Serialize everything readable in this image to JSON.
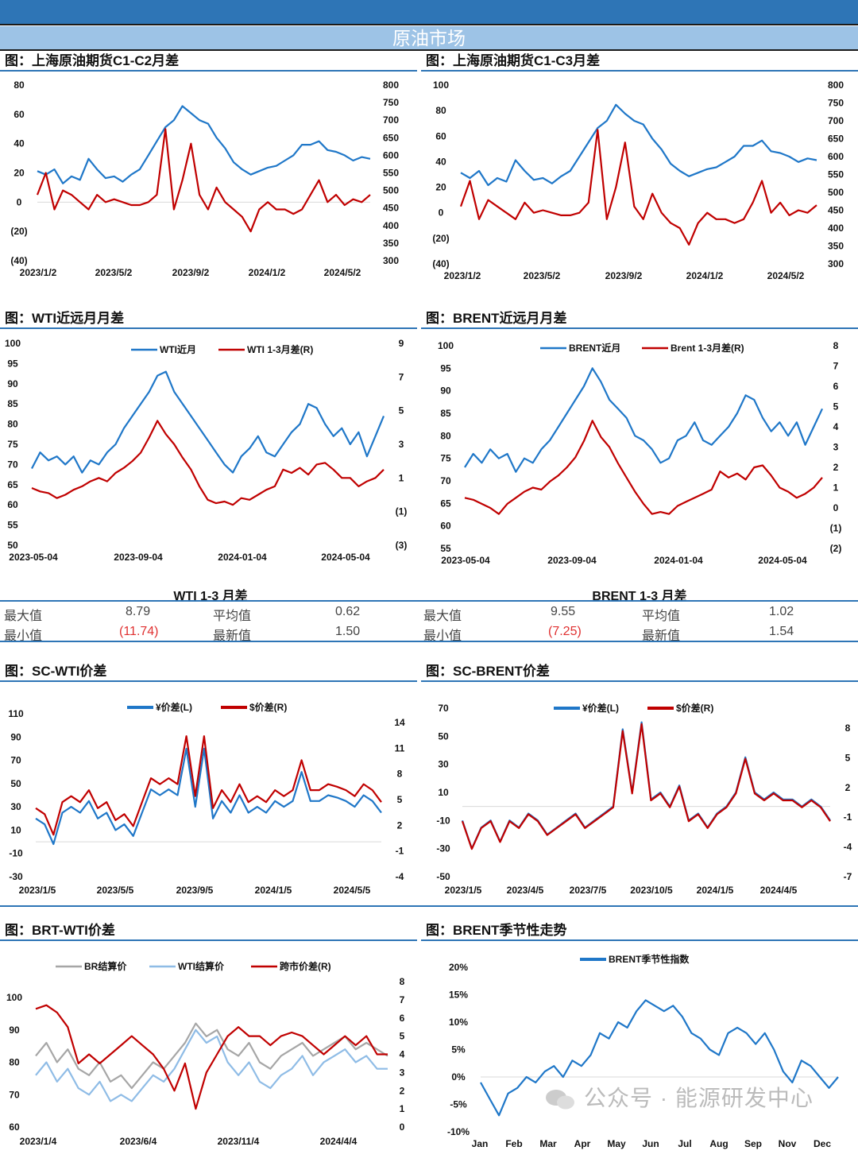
{
  "header": {
    "title": "原油市场"
  },
  "sections": {
    "c1": "图：上海原油期货C1-C2月差",
    "c2": "图：上海原油期货C1-C3月差",
    "c3": "图：WTI近远月月差",
    "c4": "图：BRENT近远月月差",
    "c5": "图：SC-WTI价差",
    "c6": "图：SC-BRENT价差",
    "c7": "图：BRT-WTI价差",
    "c8": "图：BRENT季节性走势"
  },
  "stats": {
    "wti": {
      "title": "WTI 1-3 月差",
      "max_label": "最大值",
      "max": "8.79",
      "avg_label": "平均值",
      "avg": "0.62",
      "min_label": "最小值",
      "min": "(11.74)",
      "latest_label": "最新值",
      "latest": "1.50"
    },
    "brent": {
      "title": "BRENT 1-3 月差",
      "max_label": "最大值",
      "max": "9.55",
      "avg_label": "平均值",
      "avg": "1.02",
      "min_label": "最小值",
      "min": "(7.25)",
      "latest_label": "最新值",
      "latest": "1.54"
    }
  },
  "watermark": "公众号 · 能源研发中心",
  "colors": {
    "header_dark": "#2e75b6",
    "header_light": "#9dc3e6",
    "blue": "#1f77c8",
    "red": "#c00000",
    "gray": "#a6a6a6",
    "light_blue": "#8fbce6",
    "negative_label": "#e03030"
  },
  "chart_data": [
    {
      "id": "c1",
      "type": "line",
      "x_ticks": [
        "2023/1/2",
        "2023/5/2",
        "2023/9/2",
        "2024/1/2",
        "2024/5/2"
      ],
      "left": {
        "min": -40,
        "max": 80,
        "ticks": [
          "80",
          "60",
          "40",
          "20",
          "0",
          "(20)",
          "(40)"
        ]
      },
      "right": {
        "min": 300,
        "max": 800,
        "ticks": [
          "800",
          "750",
          "700",
          "650",
          "600",
          "550",
          "500",
          "450",
          "400",
          "350",
          "300"
        ]
      },
      "zero_line": true,
      "series": [
        {
          "axis": "right",
          "color": "#1f77c8",
          "values": [
            555,
            545,
            560,
            520,
            540,
            530,
            590,
            560,
            535,
            540,
            525,
            545,
            560,
            600,
            640,
            680,
            700,
            740,
            720,
            700,
            690,
            650,
            620,
            580,
            560,
            545,
            555,
            565,
            570,
            585,
            600,
            630,
            630,
            640,
            615,
            610,
            600,
            585,
            595,
            590
          ]
        },
        {
          "axis": "left",
          "color": "#c00000",
          "values": [
            5,
            20,
            -5,
            8,
            5,
            0,
            -5,
            5,
            0,
            2,
            0,
            -2,
            -2,
            0,
            5,
            50,
            -5,
            15,
            40,
            5,
            -5,
            10,
            0,
            -5,
            -10,
            -20,
            -5,
            0,
            -5,
            -5,
            -8,
            -5,
            5,
            15,
            0,
            5,
            -2,
            2,
            0,
            5
          ]
        }
      ]
    },
    {
      "id": "c2",
      "type": "line",
      "x_ticks": [
        "2023/1/2",
        "2023/5/2",
        "2023/9/2",
        "2024/1/2",
        "2024/5/2"
      ],
      "left": {
        "min": -40,
        "max": 100,
        "ticks": [
          "100",
          "80",
          "60",
          "40",
          "20",
          "0",
          "(20)",
          "(40)"
        ]
      },
      "right": {
        "min": 300,
        "max": 800,
        "ticks": [
          "800",
          "750",
          "700",
          "650",
          "600",
          "550",
          "500",
          "450",
          "400",
          "350",
          "300"
        ]
      },
      "zero_line": false,
      "series": [
        {
          "axis": "right",
          "color": "#1f77c8",
          "values": [
            555,
            540,
            560,
            520,
            540,
            530,
            590,
            560,
            535,
            540,
            525,
            545,
            560,
            600,
            640,
            680,
            700,
            745,
            720,
            700,
            690,
            650,
            620,
            580,
            560,
            545,
            555,
            565,
            570,
            585,
            600,
            630,
            630,
            645,
            615,
            610,
            600,
            585,
            595,
            590
          ]
        },
        {
          "axis": "left",
          "color": "#c00000",
          "values": [
            5,
            25,
            -5,
            10,
            5,
            0,
            -5,
            8,
            0,
            2,
            0,
            -2,
            -2,
            0,
            8,
            65,
            -5,
            20,
            55,
            5,
            -5,
            15,
            0,
            -8,
            -12,
            -25,
            -8,
            0,
            -5,
            -5,
            -8,
            -5,
            8,
            25,
            0,
            8,
            -2,
            2,
            0,
            6
          ]
        }
      ]
    },
    {
      "id": "c3",
      "type": "line",
      "x_ticks": [
        "2023-05-04",
        "2023-09-04",
        "2024-01-04",
        "2024-05-04"
      ],
      "left": {
        "min": 50,
        "max": 100,
        "ticks": [
          "100",
          "95",
          "90",
          "85",
          "80",
          "75",
          "70",
          "65",
          "60",
          "55",
          "50"
        ]
      },
      "right": {
        "min": -3,
        "max": 9,
        "ticks": [
          "9",
          "7",
          "5",
          "3",
          "1",
          "(1)",
          "(3)"
        ]
      },
      "legend": [
        "WTI近月",
        "WTI 1-3月差(R)"
      ],
      "series": [
        {
          "name": "WTI近月",
          "axis": "left",
          "color": "#1f77c8",
          "values": [
            69,
            73,
            71,
            72,
            70,
            72,
            68,
            71,
            70,
            73,
            75,
            79,
            82,
            85,
            88,
            92,
            93,
            88,
            85,
            82,
            79,
            76,
            73,
            70,
            68,
            72,
            74,
            77,
            73,
            72,
            75,
            78,
            80,
            85,
            84,
            80,
            77,
            79,
            75,
            78,
            72,
            77,
            82
          ]
        },
        {
          "name": "WTI 1-3月差(R)",
          "axis": "right",
          "color": "#c00000",
          "values": [
            0.4,
            0.2,
            0.1,
            -0.2,
            0,
            0.3,
            0.5,
            0.8,
            1.0,
            0.8,
            1.3,
            1.6,
            2.0,
            2.5,
            3.4,
            4.4,
            3.6,
            3.0,
            2.2,
            1.5,
            0.5,
            -0.3,
            -0.5,
            -0.4,
            -0.6,
            -0.2,
            -0.3,
            0,
            0.3,
            0.5,
            1.5,
            1.3,
            1.6,
            1.2,
            1.8,
            1.9,
            1.5,
            1.0,
            1.0,
            0.5,
            0.8,
            1.0,
            1.5
          ]
        }
      ]
    },
    {
      "id": "c4",
      "type": "line",
      "x_ticks": [
        "2023-05-04",
        "2023-09-04",
        "2024-01-04",
        "2024-05-04"
      ],
      "left": {
        "min": 55,
        "max": 100,
        "ticks": [
          "100",
          "95",
          "90",
          "85",
          "80",
          "75",
          "70",
          "65",
          "60",
          "55"
        ]
      },
      "right": {
        "min": -2,
        "max": 8,
        "ticks": [
          "8",
          "7",
          "6",
          "5",
          "4",
          "3",
          "2",
          "1",
          "0",
          "(1)",
          "(2)"
        ]
      },
      "legend": [
        "BRENT近月",
        "Brent 1-3月差(R)"
      ],
      "series": [
        {
          "name": "BRENT近月",
          "axis": "left",
          "color": "#1f77c8",
          "values": [
            73,
            76,
            74,
            77,
            75,
            76,
            72,
            75,
            74,
            77,
            79,
            82,
            85,
            88,
            91,
            95,
            92,
            88,
            86,
            84,
            80,
            79,
            77,
            74,
            75,
            79,
            80,
            83,
            79,
            78,
            80,
            82,
            85,
            89,
            88,
            84,
            81,
            83,
            80,
            83,
            78,
            82,
            86
          ]
        },
        {
          "name": "Brent 1-3月差(R)",
          "axis": "right",
          "color": "#c00000",
          "values": [
            0.5,
            0.4,
            0.2,
            0,
            -0.3,
            0.2,
            0.5,
            0.8,
            1.0,
            0.9,
            1.3,
            1.6,
            2.0,
            2.5,
            3.3,
            4.3,
            3.5,
            3.0,
            2.2,
            1.5,
            0.8,
            0.2,
            -0.3,
            -0.2,
            -0.3,
            0.1,
            0.3,
            0.5,
            0.7,
            0.9,
            1.8,
            1.5,
            1.7,
            1.4,
            2.0,
            2.1,
            1.6,
            1.0,
            0.8,
            0.5,
            0.7,
            1.0,
            1.5
          ]
        }
      ]
    },
    {
      "id": "c5",
      "type": "line",
      "x_ticks": [
        "2023/1/5",
        "2023/5/5",
        "2023/9/5",
        "2024/1/5",
        "2024/5/5"
      ],
      "left": {
        "min": -30,
        "max": 110,
        "ticks": [
          "110",
          "90",
          "70",
          "50",
          "30",
          "10",
          "-10",
          "-30"
        ]
      },
      "right": {
        "min": -4,
        "max": 14,
        "ticks": [
          "14",
          "11",
          "8",
          "5",
          "2",
          "-1",
          "-4"
        ]
      },
      "zero_line": true,
      "legend": [
        "¥价差(L)",
        "$价差(R)"
      ],
      "series": [
        {
          "name": "¥价差(L)",
          "axis": "left",
          "color": "#1f77c8",
          "values": [
            20,
            15,
            -2,
            25,
            30,
            25,
            35,
            20,
            25,
            10,
            15,
            5,
            25,
            45,
            40,
            45,
            40,
            80,
            30,
            80,
            20,
            35,
            25,
            40,
            25,
            30,
            25,
            35,
            30,
            35,
            60,
            35,
            35,
            40,
            38,
            35,
            30,
            40,
            35,
            25
          ]
        },
        {
          "name": "$价差(R)",
          "axis": "right",
          "color": "#c00000",
          "values": [
            4.0,
            3.3,
            0.9,
            4.7,
            5.4,
            4.7,
            6.1,
            4.0,
            4.7,
            2.6,
            3.3,
            1.9,
            4.7,
            7.5,
            6.8,
            7.5,
            6.8,
            12.4,
            5.4,
            12.4,
            4.0,
            6.1,
            4.7,
            6.8,
            4.7,
            5.4,
            4.7,
            6.1,
            5.4,
            6.1,
            9.6,
            6.1,
            6.1,
            6.8,
            6.5,
            6.1,
            5.4,
            6.8,
            6.1,
            4.7
          ]
        }
      ]
    },
    {
      "id": "c6",
      "type": "line",
      "x_ticks": [
        "2023/1/5",
        "2023/4/5",
        "2023/7/5",
        "2023/10/5",
        "2024/1/5",
        "2024/4/5"
      ],
      "left": {
        "min": -50,
        "max": 70,
        "ticks": [
          "70",
          "50",
          "30",
          "10",
          "-10",
          "-30",
          "-50"
        ]
      },
      "right": {
        "min": -7,
        "max": 8,
        "ticks": [
          "8",
          "5",
          "2",
          "-1",
          "-4",
          "-7"
        ]
      },
      "zero_line": true,
      "legend": [
        "¥价差(L)",
        "$价差(R)"
      ],
      "series": [
        {
          "name": "¥价差(L)",
          "axis": "left",
          "color": "#1f77c8",
          "values": [
            -10,
            -30,
            -15,
            -10,
            -25,
            -10,
            -15,
            -5,
            -10,
            -20,
            -15,
            -10,
            -5,
            -15,
            -10,
            -5,
            0,
            55,
            10,
            60,
            5,
            10,
            0,
            15,
            -10,
            -5,
            -15,
            -5,
            0,
            10,
            35,
            10,
            5,
            10,
            5,
            5,
            0,
            5,
            0,
            -10
          ]
        },
        {
          "name": "$价差(R)",
          "axis": "right",
          "color": "#c00000",
          "values": [
            -1.4,
            -4.2,
            -2.1,
            -1.4,
            -3.5,
            -1.4,
            -2.1,
            -0.7,
            -1.4,
            -2.8,
            -2.1,
            -1.4,
            -0.7,
            -2.1,
            -1.4,
            -0.7,
            0,
            7.7,
            1.4,
            8.4,
            0.7,
            1.4,
            0,
            2.1,
            -1.4,
            -0.7,
            -2.1,
            -0.7,
            0,
            1.4,
            4.9,
            1.4,
            0.7,
            1.4,
            0.7,
            0.7,
            0,
            0.7,
            0,
            -1.4
          ]
        }
      ]
    },
    {
      "id": "c7",
      "type": "line",
      "x_ticks": [
        "2023/1/4",
        "2023/6/4",
        "2023/11/4",
        "2024/4/4"
      ],
      "left": {
        "min": 60,
        "max": 100,
        "ticks": [
          "100",
          "90",
          "80",
          "70",
          "60"
        ]
      },
      "right": {
        "min": 0,
        "max": 8,
        "ticks": [
          "8",
          "7",
          "6",
          "5",
          "4",
          "3",
          "2",
          "1",
          "0"
        ]
      },
      "legend": [
        "BR结算价",
        "WTI结算价",
        "跨市价差(R)"
      ],
      "series": [
        {
          "name": "BR结算价",
          "axis": "left",
          "color": "#a6a6a6",
          "values": [
            82,
            86,
            80,
            84,
            78,
            76,
            80,
            74,
            76,
            72,
            76,
            80,
            78,
            82,
            86,
            92,
            88,
            90,
            84,
            82,
            86,
            80,
            78,
            82,
            84,
            86,
            82,
            84,
            86,
            88,
            84,
            86,
            84,
            82
          ]
        },
        {
          "name": "WTI结算价",
          "axis": "left",
          "color": "#8fbce6",
          "values": [
            76,
            80,
            74,
            78,
            72,
            70,
            74,
            68,
            70,
            68,
            72,
            76,
            74,
            78,
            84,
            90,
            86,
            88,
            80,
            76,
            80,
            74,
            72,
            76,
            78,
            82,
            76,
            80,
            82,
            84,
            80,
            82,
            78,
            78
          ]
        },
        {
          "name": "跨市价差(R)",
          "axis": "right",
          "color": "#c00000",
          "values": [
            6.5,
            6.7,
            6.3,
            5.5,
            3.5,
            4,
            3.5,
            4,
            4.5,
            5,
            4.5,
            4,
            3.2,
            2,
            3.5,
            1,
            3,
            4,
            5,
            5.5,
            5,
            5,
            4.5,
            5,
            5.2,
            5,
            4.5,
            4,
            4.5,
            5,
            4.5,
            5,
            4,
            4
          ]
        }
      ]
    },
    {
      "id": "c8",
      "type": "line",
      "x_ticks": [
        "Jan",
        "Feb",
        "Mar",
        "Apr",
        "May",
        "Jun",
        "Jul",
        "Aug",
        "Sep",
        "Nov",
        "Dec"
      ],
      "left": {
        "min": -10,
        "max": 20,
        "ticks": [
          "20%",
          "15%",
          "10%",
          "5%",
          "0%",
          "-5%",
          "-10%"
        ]
      },
      "legend": [
        "BRENT季节性指数"
      ],
      "series": [
        {
          "name": "BRENT季节性指数",
          "axis": "left",
          "color": "#1f77c8",
          "values": [
            -1,
            -4,
            -7,
            -3,
            -2,
            0,
            -1,
            1,
            2,
            0,
            3,
            2,
            4,
            8,
            7,
            10,
            9,
            12,
            14,
            13,
            12,
            13,
            11,
            8,
            7,
            5,
            4,
            8,
            9,
            8,
            6,
            8,
            5,
            1,
            -1,
            3,
            2,
            0,
            -2,
            0
          ]
        }
      ]
    }
  ]
}
